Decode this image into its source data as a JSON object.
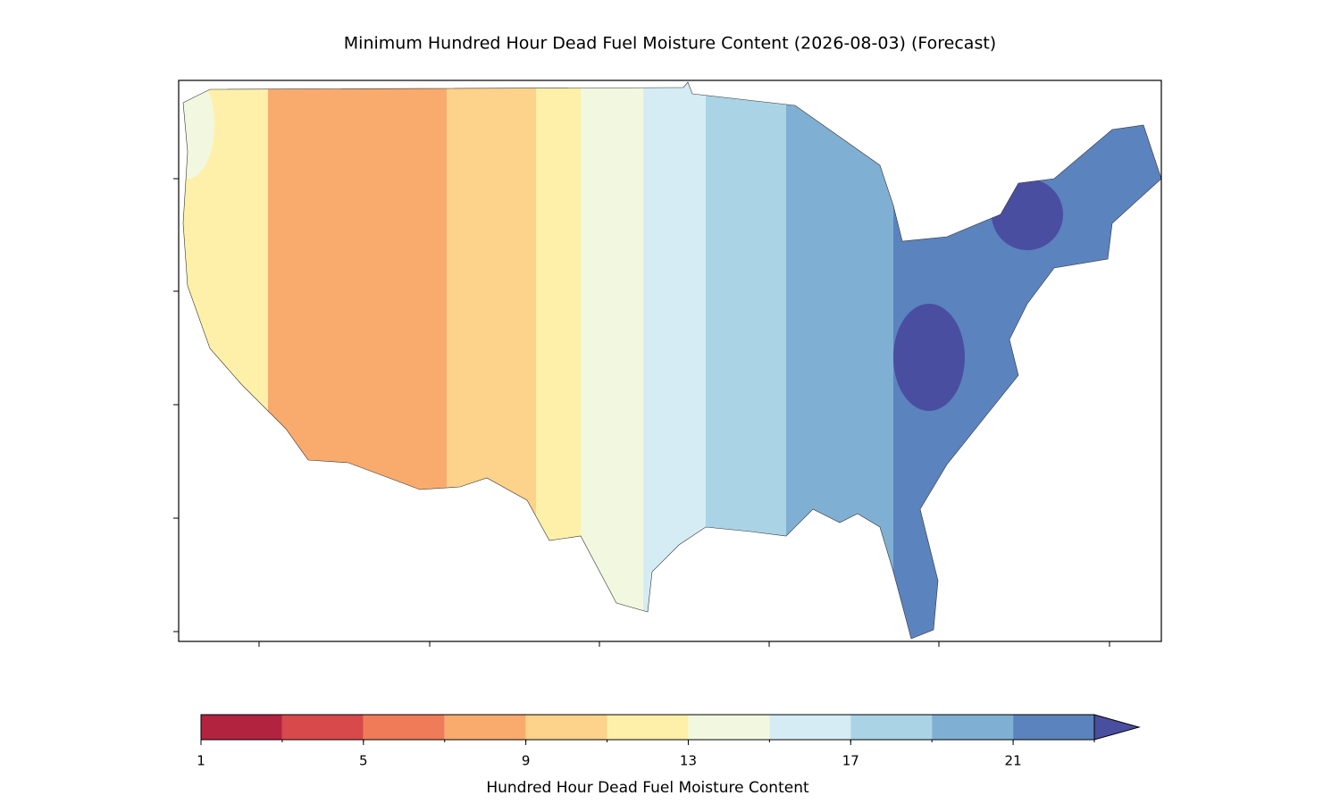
{
  "title": "Minimum Hundred Hour Dead Fuel Moisture Content (2026-08-03) (Forecast)",
  "colorbar": {
    "label": "Hundred Hour Dead Fuel Moisture Content",
    "boundaries": [
      1,
      3,
      5,
      7,
      9,
      11,
      13,
      15,
      17,
      19,
      21,
      23
    ],
    "colors": [
      "#b2233f",
      "#d7494a",
      "#ef7b59",
      "#f9ab6e",
      "#fdd28a",
      "#fef0a8",
      "#f2f8e0",
      "#d5ecf4",
      "#aad3e6",
      "#7fb0d3",
      "#5b83be"
    ],
    "extend_color": "#4a4ea0",
    "ticks": [
      1,
      5,
      9,
      13,
      17,
      21
    ]
  }
}
